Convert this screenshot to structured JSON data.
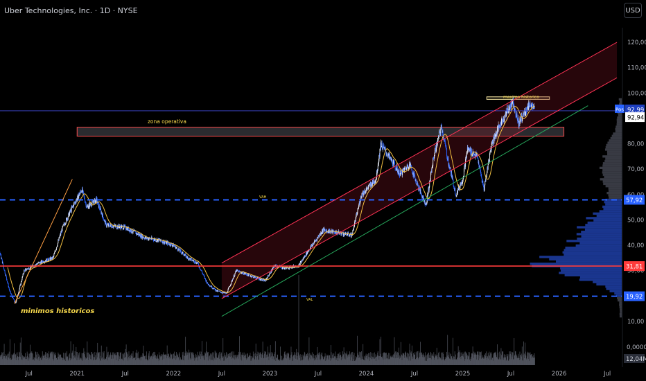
{
  "header": {
    "title": "Uber Technologies, Inc. · 1D · NYSE",
    "currency_button": "USD"
  },
  "annotations": {
    "maximo": "maximo historico",
    "zona": "zona operativa",
    "vah": "VAH",
    "val": "VAL",
    "minimos": "minimos historicos"
  },
  "price_badges": {
    "pos": "Pos",
    "pos_value": "92,99",
    "last": "92,94",
    "vah": "57,92",
    "red": "31,81",
    "val": "19,92"
  },
  "volume_labels": {
    "zero": "0,0000",
    "last": "12,04M"
  },
  "colors": {
    "background": "#000000",
    "candle_up": "#e8edf5",
    "candle_down": "#2962ff",
    "ma": "#f5c242",
    "vah_val_line": "#2962ff",
    "support_line": "#ff3b3b",
    "channel_red": "#ff3355",
    "channel_green": "#26a65b",
    "zone_border": "#ff4d4d",
    "orange_trend": "#ff9f43",
    "text_yellow": "#f7d94c"
  },
  "chart_data": {
    "type": "candlestick",
    "title": "Uber Technologies, Inc. · 1D · NYSE",
    "currency": "USD",
    "ylim": [
      0,
      125
    ],
    "y_ticks": [
      10,
      20,
      30,
      40,
      50,
      60,
      70,
      80,
      90,
      100,
      110,
      120
    ],
    "y_tick_labels": [
      "10,00",
      "20,00",
      "30,00",
      "40,00",
      "50,00",
      "60,00",
      "70,00",
      "80,00",
      "90,00",
      "100,00",
      "110,00",
      "120,00"
    ],
    "x_tick_labels": [
      "Jul",
      "2021",
      "Jul",
      "2022",
      "Jul",
      "2023",
      "Jul",
      "2024",
      "Jul",
      "2025",
      "Jul",
      "2026",
      "Jul"
    ],
    "x_tick_dates": [
      2020.5,
      2021.0,
      2021.5,
      2022.0,
      2022.5,
      2023.0,
      2023.5,
      2024.0,
      2024.5,
      2025.0,
      2025.5,
      2026.0,
      2026.5
    ],
    "xlim": [
      2020.2,
      2026.65
    ],
    "price_path": [
      {
        "t": 2020.2,
        "p": 37
      },
      {
        "t": 2020.3,
        "p": 22
      },
      {
        "t": 2020.36,
        "p": 17
      },
      {
        "t": 2020.45,
        "p": 30
      },
      {
        "t": 2020.6,
        "p": 33
      },
      {
        "t": 2020.75,
        "p": 35
      },
      {
        "t": 2020.85,
        "p": 47
      },
      {
        "t": 2020.95,
        "p": 55
      },
      {
        "t": 2021.05,
        "p": 62
      },
      {
        "t": 2021.1,
        "p": 55
      },
      {
        "t": 2021.2,
        "p": 58
      },
      {
        "t": 2021.3,
        "p": 48
      },
      {
        "t": 2021.5,
        "p": 47
      },
      {
        "t": 2021.7,
        "p": 43
      },
      {
        "t": 2021.85,
        "p": 42
      },
      {
        "t": 2022.0,
        "p": 40
      },
      {
        "t": 2022.15,
        "p": 35
      },
      {
        "t": 2022.25,
        "p": 33
      },
      {
        "t": 2022.35,
        "p": 25
      },
      {
        "t": 2022.45,
        "p": 22
      },
      {
        "t": 2022.55,
        "p": 21
      },
      {
        "t": 2022.65,
        "p": 30
      },
      {
        "t": 2022.8,
        "p": 28
      },
      {
        "t": 2022.95,
        "p": 26
      },
      {
        "t": 2023.05,
        "p": 32
      },
      {
        "t": 2023.15,
        "p": 31
      },
      {
        "t": 2023.3,
        "p": 32
      },
      {
        "t": 2023.4,
        "p": 38
      },
      {
        "t": 2023.55,
        "p": 46
      },
      {
        "t": 2023.7,
        "p": 45
      },
      {
        "t": 2023.85,
        "p": 44
      },
      {
        "t": 2023.95,
        "p": 60
      },
      {
        "t": 2024.1,
        "p": 66
      },
      {
        "t": 2024.15,
        "p": 80
      },
      {
        "t": 2024.25,
        "p": 74
      },
      {
        "t": 2024.35,
        "p": 68
      },
      {
        "t": 2024.45,
        "p": 72
      },
      {
        "t": 2024.55,
        "p": 62
      },
      {
        "t": 2024.62,
        "p": 56
      },
      {
        "t": 2024.7,
        "p": 75
      },
      {
        "t": 2024.78,
        "p": 87
      },
      {
        "t": 2024.85,
        "p": 73
      },
      {
        "t": 2024.93,
        "p": 60
      },
      {
        "t": 2025.0,
        "p": 66
      },
      {
        "t": 2025.05,
        "p": 78
      },
      {
        "t": 2025.15,
        "p": 75
      },
      {
        "t": 2025.22,
        "p": 62
      },
      {
        "t": 2025.3,
        "p": 80
      },
      {
        "t": 2025.38,
        "p": 87
      },
      {
        "t": 2025.45,
        "p": 92
      },
      {
        "t": 2025.52,
        "p": 97
      },
      {
        "t": 2025.58,
        "p": 88
      },
      {
        "t": 2025.65,
        "p": 93
      },
      {
        "t": 2025.7,
        "p": 96
      },
      {
        "t": 2025.75,
        "p": 93
      }
    ],
    "horizontal_levels": [
      {
        "label": "VAH",
        "price": 57.92,
        "style": "dashed",
        "color": "#2962ff"
      },
      {
        "label": "",
        "price": 31.81,
        "style": "solid",
        "color": "#ff3b3b"
      },
      {
        "label": "VAL",
        "price": 19.92,
        "style": "dashed",
        "color": "#2962ff"
      },
      {
        "label": "",
        "price": 92.99,
        "style": "solid",
        "color": "#3f4ad6"
      }
    ],
    "zones": [
      {
        "label": "zona operativa",
        "from": [
          2021.0,
          86.5
        ],
        "to": [
          2026.05,
          83
        ]
      },
      {
        "label": "maximo historico",
        "from": [
          2025.25,
          98.5
        ],
        "to": [
          2025.9,
          97.5
        ]
      }
    ],
    "trend_lines": [
      {
        "name": "",
        "color": "#ff3355",
        "from": [
          2022.5,
          33
        ],
        "to": [
          2026.6,
          120
        ]
      },
      {
        "name": "",
        "color": "#ff3355",
        "from": [
          2022.5,
          19
        ],
        "to": [
          2026.6,
          106
        ]
      },
      {
        "name": "",
        "color": "#26a65b",
        "from": [
          2022.5,
          12
        ],
        "to": [
          2026.3,
          95
        ]
      },
      {
        "name": "",
        "color": "#ff9f43",
        "from": [
          2020.35,
          17
        ],
        "to": [
          2020.95,
          66
        ]
      }
    ],
    "volume": {
      "zero_label": "0,0000",
      "last_label": "12,04M",
      "spike_at": 2023.3
    }
  }
}
